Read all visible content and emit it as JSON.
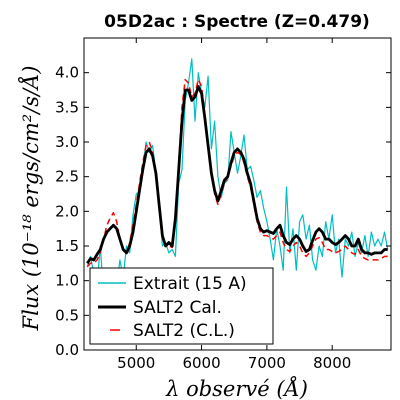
{
  "chart_data": {
    "type": "line",
    "title": "05D2ac : Spectre (Z=0.479)",
    "xlabel": "λ observé (Å)",
    "ylabel": "Flux (10⁻¹⁸ ergs/cm²/s/Å)",
    "xlim": [
      4200,
      8900
    ],
    "ylim": [
      0.0,
      4.5
    ],
    "xticks": [
      5000,
      6000,
      7000,
      8000
    ],
    "yticks": [
      0.0,
      0.5,
      1.0,
      1.5,
      2.0,
      2.5,
      3.0,
      3.5,
      4.0
    ],
    "xtick_labels": [
      "5000",
      "6000",
      "7000",
      "8000"
    ],
    "ytick_labels": [
      "0.0",
      "0.5",
      "1.0",
      "1.5",
      "2.0",
      "2.5",
      "3.0",
      "3.5",
      "4.0"
    ],
    "legend_position": "lower-left",
    "colors": {
      "extrait": "#00bfbf",
      "salt2_cal": "#000000",
      "salt2_cl": "#ff0000"
    },
    "series": [
      {
        "name": "Extrait (15 A)",
        "style": "solid",
        "x": [
          4250,
          4300,
          4350,
          4400,
          4450,
          4500,
          4550,
          4600,
          4650,
          4700,
          4750,
          4800,
          4850,
          4900,
          4950,
          5000,
          5050,
          5100,
          5150,
          5200,
          5250,
          5300,
          5350,
          5400,
          5450,
          5500,
          5550,
          5600,
          5650,
          5700,
          5750,
          5800,
          5850,
          5900,
          5950,
          6000,
          6050,
          6100,
          6150,
          6200,
          6250,
          6300,
          6350,
          6400,
          6450,
          6500,
          6550,
          6600,
          6650,
          6700,
          6750,
          6800,
          6850,
          6900,
          6950,
          7000,
          7050,
          7100,
          7150,
          7200,
          7250,
          7300,
          7350,
          7400,
          7450,
          7500,
          7550,
          7600,
          7650,
          7700,
          7750,
          7800,
          7850,
          7900,
          7950,
          8000,
          8050,
          8100,
          8150,
          8200,
          8250,
          8300,
          8350,
          8400,
          8450,
          8500,
          8550,
          8600,
          8650,
          8700,
          8750,
          8800,
          8850
        ],
        "y": [
          1.2,
          1.35,
          1.1,
          0.95,
          1.5,
          0.8,
          0.85,
          0.7,
          1.1,
          0.9,
          1.3,
          1.05,
          1.5,
          1.4,
          1.95,
          2.25,
          2.3,
          2.6,
          3.0,
          2.85,
          2.95,
          2.55,
          2.1,
          1.5,
          1.55,
          1.4,
          1.45,
          1.35,
          2.4,
          2.6,
          3.6,
          3.85,
          4.2,
          3.3,
          4.0,
          3.7,
          3.5,
          3.95,
          2.9,
          3.3,
          2.5,
          2.2,
          2.4,
          2.45,
          3.15,
          2.85,
          2.55,
          2.8,
          3.1,
          2.6,
          2.65,
          2.45,
          2.2,
          2.3,
          2.05,
          1.85,
          1.6,
          1.3,
          1.75,
          1.5,
          1.15,
          2.35,
          1.4,
          1.75,
          1.15,
          1.85,
          1.95,
          1.6,
          1.8,
          1.3,
          1.15,
          1.5,
          1.35,
          1.85,
          1.6,
          1.95,
          1.4,
          1.6,
          1.05,
          1.6,
          1.5,
          1.7,
          1.35,
          1.55,
          1.4,
          1.65,
          1.35,
          1.7,
          1.5,
          1.6,
          1.5,
          1.7,
          1.45
        ]
      },
      {
        "name": "SALT2 Cal.",
        "style": "solid",
        "x": [
          4250,
          4300,
          4350,
          4400,
          4450,
          4500,
          4550,
          4600,
          4650,
          4700,
          4750,
          4800,
          4850,
          4900,
          4950,
          5000,
          5050,
          5100,
          5150,
          5200,
          5250,
          5300,
          5350,
          5400,
          5450,
          5500,
          5550,
          5600,
          5650,
          5700,
          5750,
          5800,
          5850,
          5900,
          5950,
          6000,
          6050,
          6100,
          6150,
          6200,
          6250,
          6300,
          6350,
          6400,
          6450,
          6500,
          6550,
          6600,
          6650,
          6700,
          6750,
          6800,
          6850,
          6900,
          6950,
          7000,
          7050,
          7100,
          7150,
          7200,
          7250,
          7300,
          7350,
          7400,
          7450,
          7500,
          7550,
          7600,
          7650,
          7700,
          7750,
          7800,
          7850,
          7900,
          7950,
          8000,
          8050,
          8100,
          8150,
          8200,
          8250,
          8300,
          8350,
          8400,
          8450,
          8500,
          8550,
          8600,
          8650,
          8700,
          8750,
          8800,
          8850
        ],
        "y": [
          1.25,
          1.32,
          1.3,
          1.38,
          1.45,
          1.6,
          1.7,
          1.75,
          1.8,
          1.75,
          1.6,
          1.45,
          1.4,
          1.5,
          1.7,
          2.0,
          2.3,
          2.6,
          2.85,
          2.9,
          2.8,
          2.55,
          2.1,
          1.65,
          1.5,
          1.55,
          1.5,
          1.9,
          2.6,
          3.3,
          3.75,
          3.75,
          3.6,
          3.65,
          3.8,
          3.7,
          3.35,
          2.95,
          2.55,
          2.3,
          2.15,
          2.3,
          2.45,
          2.5,
          2.7,
          2.85,
          2.9,
          2.85,
          2.75,
          2.55,
          2.4,
          2.15,
          1.9,
          1.75,
          1.7,
          1.72,
          1.7,
          1.68,
          1.75,
          1.8,
          1.65,
          1.55,
          1.52,
          1.6,
          1.65,
          1.6,
          1.5,
          1.42,
          1.45,
          1.58,
          1.7,
          1.75,
          1.7,
          1.6,
          1.6,
          1.55,
          1.52,
          1.55,
          1.6,
          1.65,
          1.6,
          1.5,
          1.5,
          1.6,
          1.45,
          1.4,
          1.4,
          1.38,
          1.4,
          1.4,
          1.4,
          1.45,
          1.45
        ]
      },
      {
        "name": "SALT2 (C.L.)",
        "style": "dashed",
        "x": [
          4250,
          4300,
          4350,
          4400,
          4450,
          4500,
          4550,
          4600,
          4650,
          4700,
          4750,
          4800,
          4850,
          4900,
          4950,
          5000,
          5050,
          5100,
          5150,
          5200,
          5250,
          5300,
          5350,
          5400,
          5450,
          5500,
          5550,
          5600,
          5650,
          5700,
          5750,
          5800,
          5850,
          5900,
          5950,
          6000,
          6050,
          6100,
          6150,
          6200,
          6250,
          6300,
          6350,
          6400,
          6450,
          6500,
          6550,
          6600,
          6650,
          6700,
          6750,
          6800,
          6850,
          6900,
          6950,
          7000,
          7050,
          7100,
          7150,
          7200,
          7250,
          7300,
          7350,
          7400,
          7450,
          7500,
          7550,
          7600,
          7650,
          7700,
          7750,
          7800,
          7850,
          7900,
          7950,
          8000,
          8050,
          8100,
          8150,
          8200,
          8250,
          8300,
          8350,
          8400,
          8450,
          8500,
          8550,
          8600,
          8650,
          8700,
          8750,
          8800,
          8850
        ],
        "y": [
          1.2,
          1.25,
          1.25,
          1.3,
          1.4,
          1.6,
          1.8,
          1.9,
          1.98,
          1.85,
          1.6,
          1.45,
          1.4,
          1.55,
          1.8,
          2.1,
          2.4,
          2.7,
          2.95,
          3.0,
          2.85,
          2.55,
          2.1,
          1.65,
          1.5,
          1.5,
          1.48,
          1.9,
          2.7,
          3.5,
          3.9,
          3.85,
          3.65,
          3.7,
          3.9,
          3.8,
          3.4,
          2.95,
          2.55,
          2.25,
          2.1,
          2.25,
          2.4,
          2.5,
          2.65,
          2.8,
          2.85,
          2.82,
          2.7,
          2.5,
          2.35,
          2.1,
          1.85,
          1.7,
          1.65,
          1.65,
          1.62,
          1.6,
          1.65,
          1.7,
          1.55,
          1.45,
          1.42,
          1.5,
          1.55,
          1.5,
          1.4,
          1.35,
          1.4,
          1.5,
          1.6,
          1.62,
          1.55,
          1.45,
          1.45,
          1.42,
          1.4,
          1.42,
          1.45,
          1.5,
          1.45,
          1.4,
          1.38,
          1.45,
          1.35,
          1.32,
          1.3,
          1.3,
          1.3,
          1.3,
          1.32,
          1.35,
          1.35
        ]
      }
    ]
  }
}
